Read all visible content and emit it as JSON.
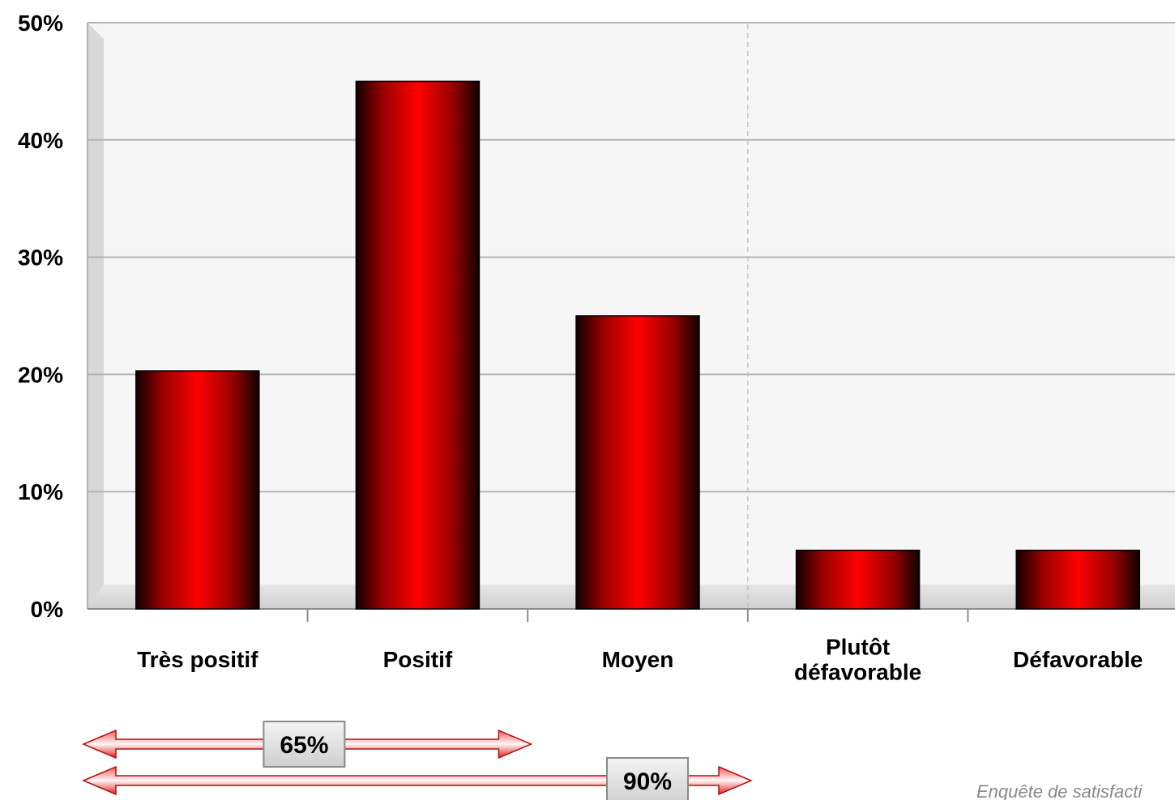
{
  "chart_data": {
    "type": "bar",
    "categories": [
      [
        "Très positif"
      ],
      [
        "Positif"
      ],
      [
        "Moyen"
      ],
      [
        "Plutôt",
        "défavorable"
      ],
      [
        "Défavorable"
      ]
    ],
    "values": [
      20.3,
      45,
      25,
      5,
      5
    ],
    "ylim": [
      0,
      50
    ],
    "yticks": [
      0,
      10,
      20,
      30,
      40,
      50
    ],
    "ytick_labels": [
      "0%",
      "10%",
      "20%",
      "30%",
      "40%",
      "50%"
    ],
    "grid": true,
    "bar_color": "#ff0000",
    "bar_edge_color": "#000000",
    "annotations": [
      {
        "label": "65%",
        "spans_categories": [
          0,
          1
        ],
        "color": "#e02020"
      },
      {
        "label": "90%",
        "spans_categories": [
          0,
          2
        ],
        "color": "#e02020"
      }
    ],
    "source": "Enquête de satisfacti"
  }
}
